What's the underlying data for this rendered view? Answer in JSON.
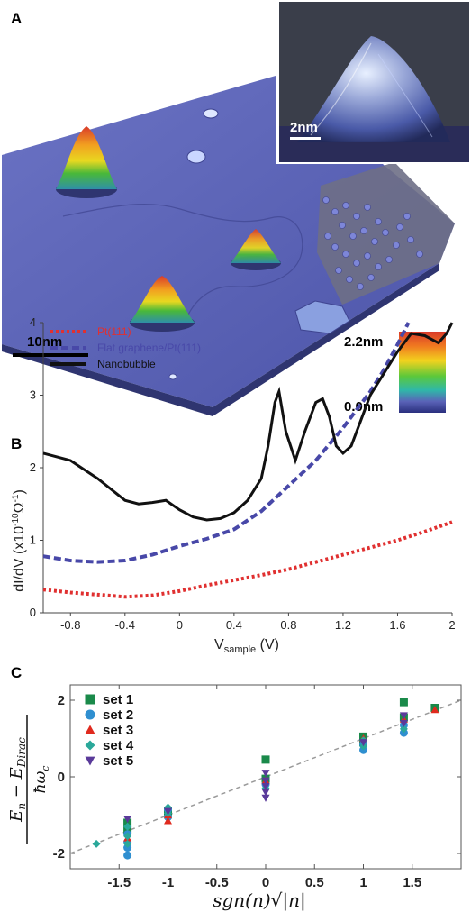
{
  "panel_a": {
    "letter": "A",
    "scale_bar_label": "10nm",
    "inset_scale_label": "2nm",
    "colorbar_max": "2.2nm",
    "colorbar_min": "0.0nm",
    "colors": {
      "substrate": "#5a63b8",
      "substrate_dark": "#3a3f86",
      "colorbar_top": "#d93a2a",
      "colorbar_bottom": "#2a2f7e"
    }
  },
  "panel_b": {
    "letter": "B",
    "ylabel_main": "dI/dV (x10",
    "ylabel_exp": "-10",
    "ylabel_unit": "Ω",
    "ylabel_exp2": "-1",
    "ylabel_close": ")",
    "xlabel_main": "V",
    "xlabel_sub": "sample",
    "xlabel_unit": " (V)"
  },
  "panel_c": {
    "letter": "C",
    "ylabel_num": "E",
    "ylabel_num_sub": "n",
    "ylabel_minus": " − E",
    "ylabel_num_sub2": "Dirac",
    "ylabel_den": "ħω",
    "ylabel_den_sub": "c",
    "xlabel": "sgn(n)√|n|"
  },
  "chart_data": [
    {
      "type": "line",
      "panel": "B",
      "xlabel": "V_sample (V)",
      "ylabel": "dI/dV (x10^-10 Ω^-1)",
      "xlim": [
        -1.0,
        2.0
      ],
      "ylim": [
        0,
        4
      ],
      "xticks": [
        "-0.8",
        "-0.4",
        "0",
        "0.4",
        "0.8",
        "1.2",
        "1.6",
        "2"
      ],
      "yticks": [
        "0",
        "1",
        "2",
        "3",
        "4"
      ],
      "legend_position": "top-left",
      "series": [
        {
          "name": "Pt(111)",
          "color": "#e03030",
          "style": "dotted",
          "x": [
            -1.0,
            -0.8,
            -0.6,
            -0.4,
            -0.2,
            0.0,
            0.2,
            0.4,
            0.6,
            0.8,
            1.0,
            1.2,
            1.4,
            1.6,
            1.8,
            2.0
          ],
          "y": [
            0.32,
            0.28,
            0.25,
            0.22,
            0.24,
            0.3,
            0.38,
            0.45,
            0.52,
            0.6,
            0.7,
            0.8,
            0.9,
            1.0,
            1.12,
            1.25
          ]
        },
        {
          "name": "Flat graphene/Pt(111)",
          "color": "#4848a8",
          "style": "dashed",
          "x": [
            -1.0,
            -0.8,
            -0.6,
            -0.4,
            -0.2,
            0.0,
            0.2,
            0.4,
            0.6,
            0.8,
            1.0,
            1.2,
            1.4,
            1.5,
            1.6,
            1.68
          ],
          "y": [
            0.78,
            0.72,
            0.7,
            0.72,
            0.8,
            0.92,
            1.02,
            1.15,
            1.4,
            1.75,
            2.1,
            2.55,
            3.05,
            3.35,
            3.7,
            4.0
          ]
        },
        {
          "name": "Nanobubble",
          "color": "#111111",
          "style": "solid",
          "x": [
            -1.0,
            -0.8,
            -0.6,
            -0.4,
            -0.3,
            -0.2,
            -0.1,
            0.0,
            0.1,
            0.2,
            0.3,
            0.4,
            0.5,
            0.6,
            0.65,
            0.7,
            0.73,
            0.78,
            0.85,
            0.92,
            1.0,
            1.05,
            1.1,
            1.15,
            1.2,
            1.26,
            1.32,
            1.4,
            1.5,
            1.6,
            1.7,
            1.8,
            1.9,
            1.96,
            2.0
          ],
          "y": [
            2.2,
            2.1,
            1.85,
            1.55,
            1.5,
            1.52,
            1.55,
            1.42,
            1.32,
            1.28,
            1.3,
            1.38,
            1.55,
            1.85,
            2.3,
            2.9,
            3.05,
            2.5,
            2.1,
            2.5,
            2.9,
            2.95,
            2.7,
            2.3,
            2.2,
            2.3,
            2.6,
            3.0,
            3.3,
            3.6,
            3.85,
            3.82,
            3.72,
            3.85,
            4.0
          ]
        }
      ]
    },
    {
      "type": "scatter",
      "panel": "C",
      "xlabel": "sgn(n)√|n|",
      "ylabel": "(E_n − E_Dirac)/ħω_c",
      "xlim": [
        -2.0,
        2.0
      ],
      "ylim": [
        -2.4,
        2.4
      ],
      "xticks": [
        "-1.5",
        "-1",
        "-0.5",
        "0",
        "0.5",
        "1",
        "1.5"
      ],
      "yticks": [
        "-2",
        "0",
        "2"
      ],
      "legend_position": "top-left",
      "guide_line": {
        "style": "dashed",
        "color": "#9a9a9a",
        "slope": 1.0,
        "intercept": 0.0
      },
      "series": [
        {
          "name": "set 1",
          "color": "#1a8a4a",
          "marker": "square",
          "x": [
            -1.414,
            -1.414,
            -1.0,
            0.0,
            0.0,
            1.0,
            1.0,
            1.414,
            1.414,
            1.732
          ],
          "y": [
            -1.4,
            -1.2,
            -0.9,
            0.45,
            -0.05,
            1.05,
            0.9,
            1.95,
            1.55,
            1.8
          ]
        },
        {
          "name": "set 2",
          "color": "#2f8fd0",
          "marker": "circle",
          "x": [
            -1.414,
            -1.414,
            -1.414,
            -1.414,
            -1.0,
            -1.0,
            0.0,
            1.0,
            1.0,
            1.414,
            1.414
          ],
          "y": [
            -2.05,
            -1.85,
            -1.7,
            -1.5,
            -1.05,
            -0.85,
            -0.2,
            0.7,
            0.85,
            1.15,
            1.35
          ]
        },
        {
          "name": "set 3",
          "color": "#e02a1e",
          "marker": "triangle",
          "x": [
            -1.414,
            -1.0,
            -1.0,
            0.0,
            1.0,
            1.414,
            1.732
          ],
          "y": [
            -1.6,
            -1.15,
            -1.0,
            -0.1,
            1.0,
            1.5,
            1.75
          ]
        },
        {
          "name": "set 4",
          "color": "#2aa89a",
          "marker": "diamond",
          "x": [
            -1.732,
            -1.414,
            -1.414,
            -1.414,
            -1.0,
            -1.0,
            0.0,
            1.0,
            1.0,
            1.414
          ],
          "y": [
            -1.75,
            -1.3,
            -1.55,
            -1.75,
            -0.8,
            -0.95,
            -0.3,
            0.8,
            0.95,
            1.25
          ]
        },
        {
          "name": "set 5",
          "color": "#5a3a9a",
          "marker": "triangle-down",
          "x": [
            -1.414,
            -1.0,
            0.0,
            0.0,
            0.0,
            0.0,
            0.0,
            1.0,
            1.414,
            1.414
          ],
          "y": [
            -1.1,
            -0.9,
            0.1,
            -0.1,
            -0.25,
            -0.4,
            -0.55,
            0.9,
            1.4,
            1.6
          ]
        }
      ]
    }
  ]
}
